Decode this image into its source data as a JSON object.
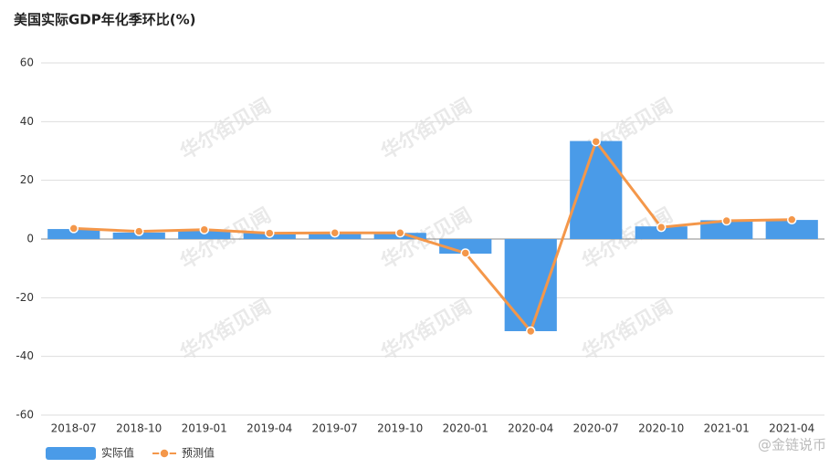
{
  "chart_data": {
    "type": "bar-line",
    "title": "美国实际GDP年化季环比(%)",
    "categories": [
      "2018-07",
      "2018-10",
      "2019-01",
      "2019-04",
      "2019-07",
      "2019-10",
      "2020-01",
      "2020-04",
      "2020-07",
      "2020-10",
      "2021-01",
      "2021-04"
    ],
    "series": [
      {
        "name": "实际值",
        "type": "bar",
        "color": "#4a9be8",
        "values": [
          3.4,
          2.2,
          3.1,
          2.0,
          2.1,
          2.1,
          -5.0,
          -31.4,
          33.4,
          4.3,
          6.4,
          6.5
        ]
      },
      {
        "name": "预测值",
        "type": "line",
        "color": "#f4974a",
        "values": [
          3.6,
          2.6,
          3.2,
          2.0,
          2.1,
          2.1,
          -4.8,
          -31.4,
          33.2,
          4.0,
          6.2,
          6.6
        ]
      }
    ],
    "ylim": [
      -60,
      60
    ],
    "yticks": [
      -60,
      -40,
      -20,
      0,
      20,
      40,
      60
    ],
    "grid": true,
    "legend_position": "bottom-left",
    "watermark": "华尔街见闻",
    "credit": "@金链说币"
  }
}
